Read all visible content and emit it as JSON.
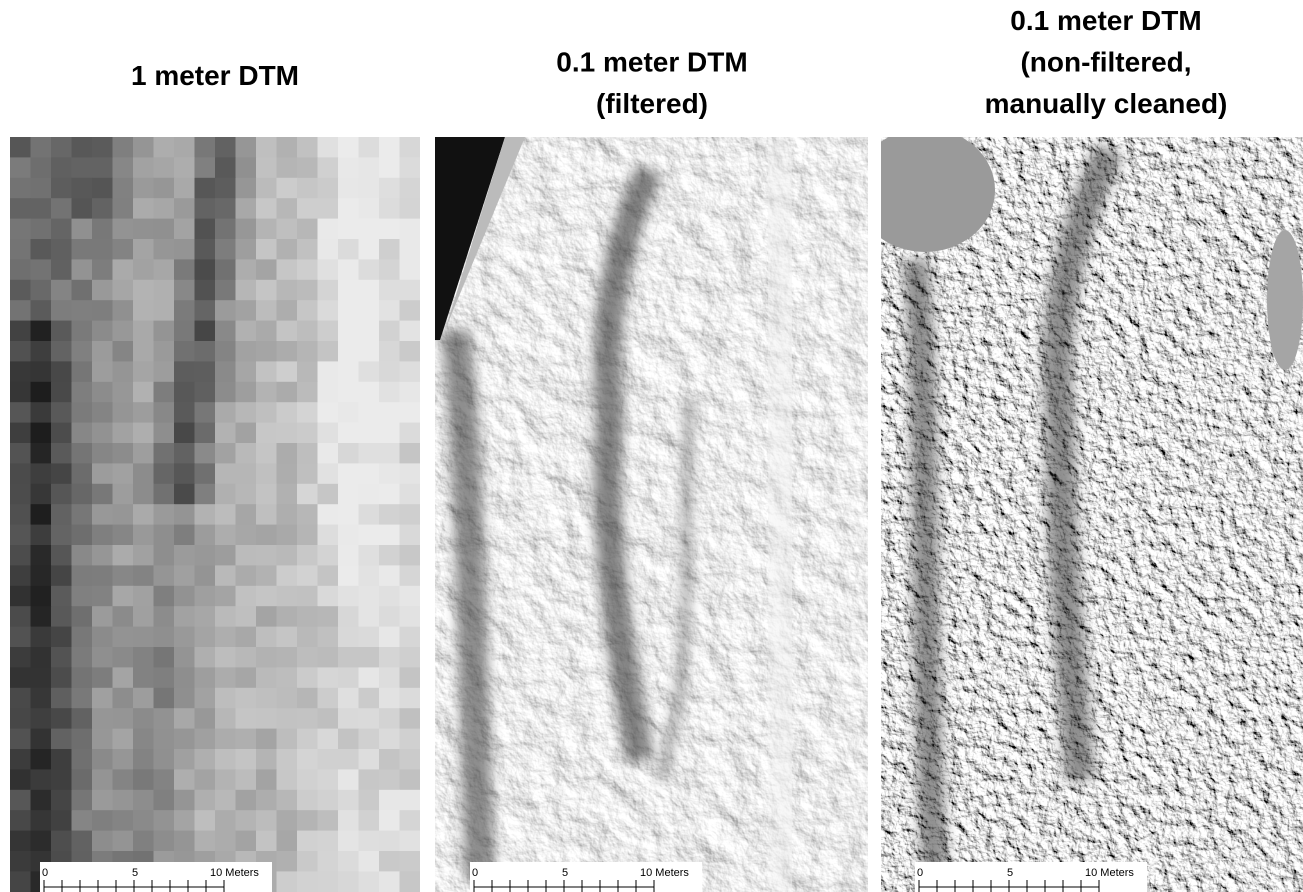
{
  "panels": [
    {
      "title": [
        "1 meter DTM"
      ],
      "scale_bar": [
        "0",
        "5",
        "10 Meters"
      ]
    },
    {
      "title": [
        "0.1 meter DTM",
        "(filtered)"
      ],
      "scale_bar": [
        "0",
        "5",
        "10 Meters"
      ]
    },
    {
      "title": [
        "0.1 meter DTM",
        "(non-filtered,",
        "manually cleaned)"
      ],
      "scale_bar": [
        "0",
        "5",
        "10 Meters"
      ]
    }
  ]
}
